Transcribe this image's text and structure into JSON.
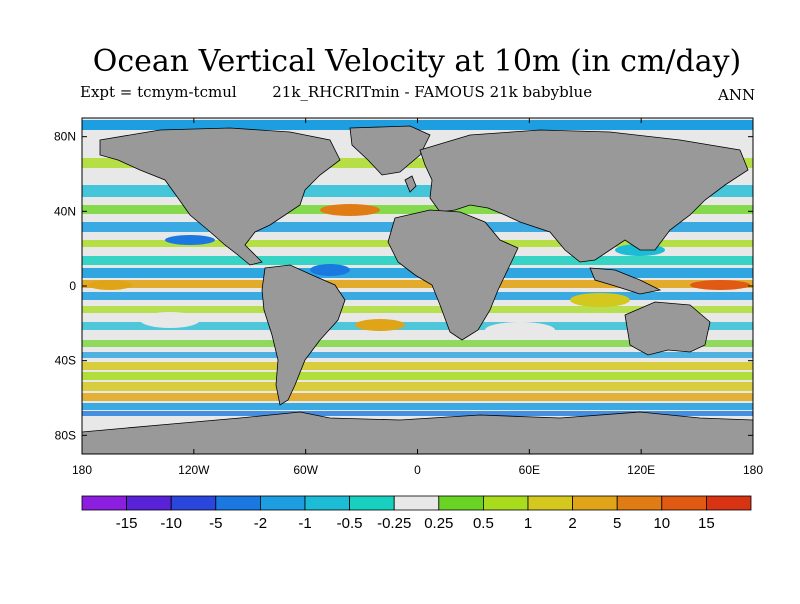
{
  "title": "Ocean Vertical Velocity at 10m (in cm/day)",
  "subtitle_left": "Expt = tcmym-tcmul",
  "subtitle_center": "21k_RHCRITmin - FAMOUS 21k babyblue",
  "subtitle_right": "ANN",
  "map": {
    "projection": "equirectangular",
    "lon_range": [
      -180,
      180
    ],
    "lat_range": [
      -90,
      90
    ],
    "land_color": "#999999",
    "coast_color": "#000000"
  },
  "axes": {
    "y_ticks": [
      {
        "label": "80N",
        "lat": 80
      },
      {
        "label": "40N",
        "lat": 40
      },
      {
        "label": "0",
        "lat": 0
      },
      {
        "label": "40S",
        "lat": -40
      },
      {
        "label": "80S",
        "lat": -80
      }
    ],
    "x_ticks": [
      {
        "label": "180",
        "lon": -180
      },
      {
        "label": "120W",
        "lon": -120
      },
      {
        "label": "60W",
        "lon": -60
      },
      {
        "label": "0",
        "lon": 0
      },
      {
        "label": "60E",
        "lon": 60
      },
      {
        "label": "120E",
        "lon": 120
      },
      {
        "label": "180",
        "lon": 180
      }
    ]
  },
  "colorbar": {
    "colors": [
      "#8c1ee0",
      "#5a22d8",
      "#2a46dc",
      "#1a78e0",
      "#1c9ee0",
      "#1cbcd6",
      "#18d0c0",
      "#e8e8e8",
      "#6ad424",
      "#a8dc1c",
      "#d4c81e",
      "#e0a418",
      "#e07c14",
      "#e05a14",
      "#d83414"
    ],
    "labels": [
      "-15",
      "-10",
      "-5",
      "-2",
      "-1",
      "-0.5",
      "-0.25",
      "0.25",
      "0.5",
      "1",
      "2",
      "5",
      "10",
      "15"
    ]
  }
}
